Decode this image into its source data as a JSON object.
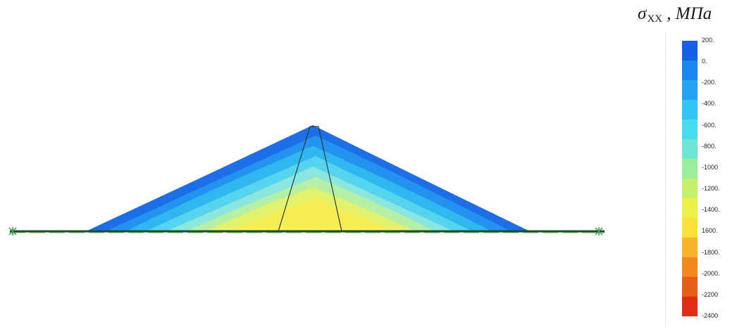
{
  "legend": {
    "title_symbol": "σ",
    "title_subscript": "XX",
    "title_unit": " , МПа",
    "colors": [
      "#1560e8",
      "#1a86ee",
      "#23a4f0",
      "#2fc4f2",
      "#47dcf2",
      "#6de6d2",
      "#9ced9a",
      "#c4ef6a",
      "#ecf14a",
      "#fae03a",
      "#f8b32c",
      "#f18a1e",
      "#e85e18",
      "#e02e14"
    ],
    "ticks": [
      "200.",
      "0.",
      "-200.",
      "-400.",
      "-600.",
      "-800.",
      "-1000",
      "-1200.",
      "-1400.",
      "1600.",
      "-1800.",
      "-2000.",
      "-2200",
      "-2400"
    ]
  },
  "diagram": {
    "bands": [
      {
        "color": "#1c6fe8"
      },
      {
        "color": "#2393ef"
      },
      {
        "color": "#2fb8f0"
      },
      {
        "color": "#56d3ef"
      },
      {
        "color": "#8be6de"
      },
      {
        "color": "#b6f0a6"
      },
      {
        "color": "#e2f26c"
      },
      {
        "color": "#f4ee54"
      }
    ],
    "ground_color": "#1b4d36",
    "outline_color": "#2a3a3a"
  }
}
